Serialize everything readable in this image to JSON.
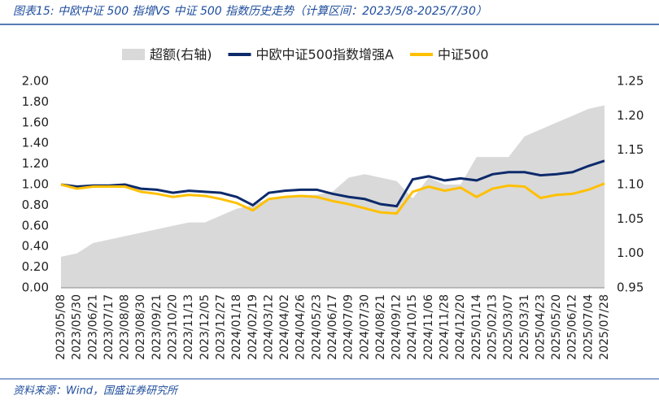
{
  "chart_data": {
    "type": "line",
    "title": "图表15:  中欧中证 500 指增VS 中证 500 指数历史走势（计算区间：2023/5/8-2025/7/30）",
    "source": "资料来源：Wind，国盛证券研究所",
    "categories": [
      "2023/05/08",
      "2023/05/30",
      "2023/06/21",
      "2023/07/17",
      "2023/08/08",
      "2023/08/30",
      "2023/09/21",
      "2023/10/20",
      "2023/11/13",
      "2023/12/05",
      "2023/12/27",
      "2024/01/18",
      "2024/02/19",
      "2024/03/12",
      "2024/04/02",
      "2024/04/26",
      "2024/05/23",
      "2024/06/17",
      "2024/07/09",
      "2024/07/30",
      "2024/08/21",
      "2024/09/12",
      "2024/10/15",
      "2024/11/06",
      "2024/11/28",
      "2024/12/20",
      "2025/01/14",
      "2025/02/13",
      "2025/03/07",
      "2025/03/31",
      "2025/04/23",
      "2025/05/20",
      "2025/06/12",
      "2025/07/04",
      "2025/07/28"
    ],
    "series": [
      {
        "name": "超额(右轴)",
        "kind": "area",
        "axis": "y2",
        "color": "#d9d9d9",
        "values": [
          0.995,
          1.0,
          1.015,
          1.02,
          1.025,
          1.03,
          1.035,
          1.04,
          1.045,
          1.045,
          1.055,
          1.065,
          1.07,
          1.08,
          1.08,
          1.085,
          1.085,
          1.09,
          1.11,
          1.115,
          1.11,
          1.105,
          1.08,
          1.11,
          1.1,
          1.1,
          1.14,
          1.14,
          1.14,
          1.17,
          1.18,
          1.19,
          1.2,
          1.21,
          1.215
        ]
      },
      {
        "name": "中欧中证500指数增强A",
        "color": "#0d2a6b",
        "values": [
          1.0,
          0.98,
          0.99,
          0.99,
          1.0,
          0.96,
          0.95,
          0.92,
          0.94,
          0.93,
          0.92,
          0.88,
          0.8,
          0.92,
          0.94,
          0.95,
          0.95,
          0.91,
          0.88,
          0.86,
          0.81,
          0.79,
          1.05,
          1.08,
          1.04,
          1.06,
          1.04,
          1.1,
          1.12,
          1.12,
          1.09,
          1.1,
          1.12,
          1.18,
          1.23
        ]
      },
      {
        "name": "中证500",
        "color": "#ffc000",
        "values": [
          1.0,
          0.96,
          0.98,
          0.98,
          0.98,
          0.93,
          0.91,
          0.88,
          0.9,
          0.89,
          0.86,
          0.82,
          0.75,
          0.86,
          0.88,
          0.89,
          0.88,
          0.84,
          0.81,
          0.77,
          0.73,
          0.72,
          0.93,
          0.98,
          0.94,
          0.97,
          0.88,
          0.96,
          0.99,
          0.98,
          0.87,
          0.9,
          0.91,
          0.95,
          1.01
        ]
      }
    ],
    "ylim": [
      0,
      2
    ],
    "yticks": [
      {
        "value": 0,
        "label": "0.00"
      },
      {
        "value": 0.2,
        "label": "0.20"
      },
      {
        "value": 0.4,
        "label": "0.40"
      },
      {
        "value": 0.6,
        "label": "0.60"
      },
      {
        "value": 0.8,
        "label": "0.80"
      },
      {
        "value": 1,
        "label": "1.00"
      },
      {
        "value": 1.2,
        "label": "1.20"
      },
      {
        "value": 1.4,
        "label": "1.40"
      },
      {
        "value": 1.6,
        "label": "1.60"
      },
      {
        "value": 1.8,
        "label": "1.80"
      },
      {
        "value": 2,
        "label": "2.00"
      }
    ],
    "y2lim": [
      0.95,
      1.25
    ],
    "y2ticks": [
      0.95,
      {
        "value": 1,
        "label": "1.00"
      },
      1.05,
      {
        "value": 1.1,
        "label": "1.10"
      },
      1.15,
      {
        "value": 1.2,
        "label": "1.20"
      },
      1.25
    ]
  }
}
